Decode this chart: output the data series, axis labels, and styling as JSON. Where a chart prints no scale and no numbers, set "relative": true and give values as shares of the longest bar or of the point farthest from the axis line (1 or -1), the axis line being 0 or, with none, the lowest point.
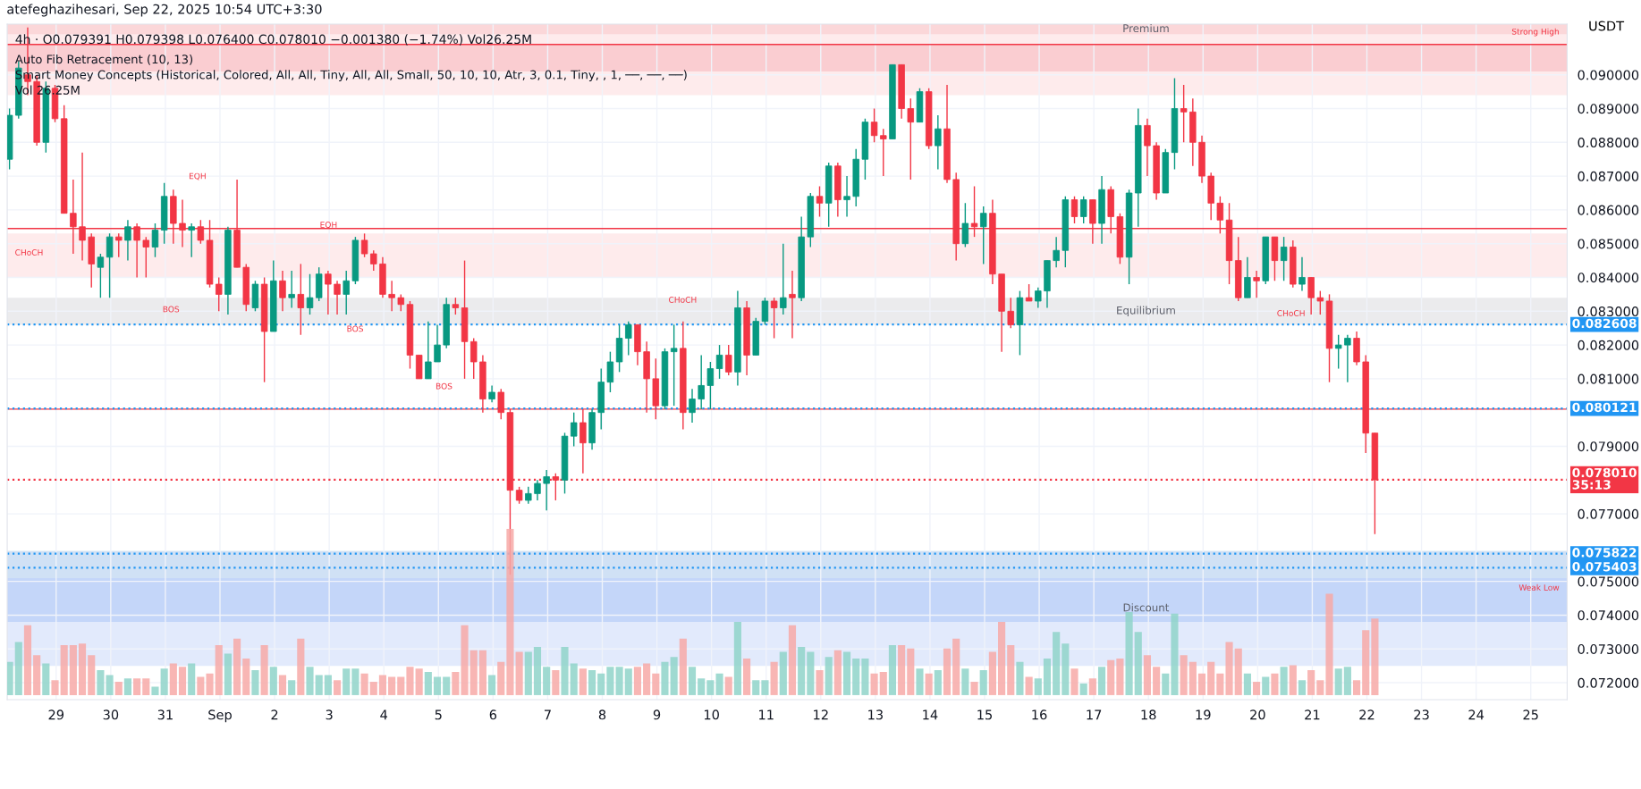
{
  "chart_data": [
    {
      "type": "candlestick",
      "title": "4h · O0.079391 H0.079398 L0.076400 C0.078010 −0.001380 (−1.74%) Vol26.25M",
      "subtitle": "Auto Fib Retracement (10, 13)\nSmart Money Concepts (Historical, Colored, All, All, Tiny, All, All, Small, 50, 10, 10, Atr, 3, 0.1, Tiny, , 1, ──, ──, ──)\nVol 26.25M",
      "ylabel": "USDT",
      "x": [
        "2025-08-28T03:30",
        "2025-08-28T07:30",
        "2025-08-28T11:30",
        "2025-08-28T15:30",
        "2025-08-28T19:30",
        "2025-08-28T23:30",
        "2025-08-29T03:30",
        "2025-08-29T07:30",
        "2025-08-29T11:30",
        "2025-08-29T15:30",
        "2025-08-29T19:30",
        "2025-08-29T23:30",
        "2025-08-30T03:30",
        "2025-08-30T07:30",
        "2025-08-30T11:30",
        "2025-08-30T15:30",
        "2025-08-30T19:30",
        "2025-08-30T23:30",
        "2025-08-31T03:30",
        "2025-08-31T07:30",
        "2025-08-31T11:30",
        "2025-08-31T15:30",
        "2025-08-31T19:30",
        "2025-08-31T23:30",
        "2025-09-01T03:30",
        "2025-09-01T07:30",
        "2025-09-01T11:30",
        "2025-09-01T15:30",
        "2025-09-01T19:30",
        "2025-09-01T23:30",
        "2025-09-02T03:30",
        "2025-09-02T07:30",
        "2025-09-02T11:30",
        "2025-09-02T15:30",
        "2025-09-02T19:30",
        "2025-09-02T23:30",
        "2025-09-03T03:30",
        "2025-09-03T07:30",
        "2025-09-03T11:30",
        "2025-09-03T15:30",
        "2025-09-03T19:30",
        "2025-09-03T23:30",
        "2025-09-04T03:30",
        "2025-09-04T07:30",
        "2025-09-04T11:30",
        "2025-09-04T15:30",
        "2025-09-04T19:30",
        "2025-09-04T23:30",
        "2025-09-05T03:30",
        "2025-09-05T07:30",
        "2025-09-05T11:30",
        "2025-09-05T15:30",
        "2025-09-05T19:30",
        "2025-09-05T23:30",
        "2025-09-06T03:30",
        "2025-09-06T07:30",
        "2025-09-06T11:30",
        "2025-09-06T15:30",
        "2025-09-06T19:30",
        "2025-09-06T23:30",
        "2025-09-07T03:30",
        "2025-09-07T07:30",
        "2025-09-07T11:30",
        "2025-09-07T15:30",
        "2025-09-07T19:30",
        "2025-09-07T23:30",
        "2025-09-08T03:30",
        "2025-09-08T07:30",
        "2025-09-08T11:30",
        "2025-09-08T15:30",
        "2025-09-08T19:30",
        "2025-09-08T23:30",
        "2025-09-09T03:30",
        "2025-09-09T07:30",
        "2025-09-09T11:30",
        "2025-09-09T15:30",
        "2025-09-09T19:30",
        "2025-09-09T23:30",
        "2025-09-10T03:30",
        "2025-09-10T07:30",
        "2025-09-10T11:30",
        "2025-09-10T15:30",
        "2025-09-10T19:30",
        "2025-09-10T23:30",
        "2025-09-11T03:30",
        "2025-09-11T07:30",
        "2025-09-11T11:30",
        "2025-09-11T15:30",
        "2025-09-11T19:30",
        "2025-09-11T23:30",
        "2025-09-12T03:30",
        "2025-09-12T07:30",
        "2025-09-12T11:30",
        "2025-09-12T15:30",
        "2025-09-12T19:30",
        "2025-09-12T23:30",
        "2025-09-13T03:30",
        "2025-09-13T07:30",
        "2025-09-13T11:30",
        "2025-09-13T15:30",
        "2025-09-13T19:30",
        "2025-09-13T23:30",
        "2025-09-14T03:30",
        "2025-09-14T07:30",
        "2025-09-14T11:30",
        "2025-09-14T15:30",
        "2025-09-14T19:30",
        "2025-09-14T23:30",
        "2025-09-15T03:30",
        "2025-09-15T07:30",
        "2025-09-15T11:30",
        "2025-09-15T15:30",
        "2025-09-15T19:30",
        "2025-09-15T23:30",
        "2025-09-16T03:30",
        "2025-09-16T07:30",
        "2025-09-16T11:30",
        "2025-09-16T15:30",
        "2025-09-16T19:30",
        "2025-09-16T23:30",
        "2025-09-17T03:30",
        "2025-09-17T07:30",
        "2025-09-17T11:30",
        "2025-09-17T15:30",
        "2025-09-17T19:30",
        "2025-09-17T23:30",
        "2025-09-18T03:30",
        "2025-09-18T07:30",
        "2025-09-18T11:30",
        "2025-09-18T15:30",
        "2025-09-18T19:30",
        "2025-09-18T23:30",
        "2025-09-19T03:30",
        "2025-09-19T07:30",
        "2025-09-19T11:30",
        "2025-09-19T15:30",
        "2025-09-19T19:30",
        "2025-09-19T23:30",
        "2025-09-20T03:30",
        "2025-09-20T07:30",
        "2025-09-20T11:30",
        "2025-09-20T15:30",
        "2025-09-20T19:30",
        "2025-09-20T23:30",
        "2025-09-21T03:30",
        "2025-09-21T07:30",
        "2025-09-21T11:30",
        "2025-09-21T15:30",
        "2025-09-21T19:30",
        "2025-09-21T23:30",
        "2025-09-22T03:30"
      ],
      "ohlc": [
        [
          0.0875,
          0.089,
          0.0872,
          0.0888
        ],
        [
          0.0888,
          0.0904,
          0.0887,
          0.0902
        ],
        [
          0.09,
          0.0914,
          0.0894,
          0.0898
        ],
        [
          0.0898,
          0.09,
          0.0879,
          0.088
        ],
        [
          0.088,
          0.0898,
          0.0877,
          0.0896
        ],
        [
          0.0896,
          0.0897,
          0.0886,
          0.0887
        ],
        [
          0.0887,
          0.0891,
          0.0859,
          0.0859
        ],
        [
          0.0859,
          0.0869,
          0.0847,
          0.0855
        ],
        [
          0.0855,
          0.0877,
          0.0845,
          0.0851
        ],
        [
          0.0852,
          0.0853,
          0.0837,
          0.0844
        ],
        [
          0.0843,
          0.0847,
          0.0834,
          0.0846
        ],
        [
          0.0846,
          0.0853,
          0.0834,
          0.0852
        ],
        [
          0.0852,
          0.0853,
          0.0846,
          0.0851
        ],
        [
          0.0851,
          0.0857,
          0.0845,
          0.0855
        ],
        [
          0.0855,
          0.0856,
          0.084,
          0.0851
        ],
        [
          0.0851,
          0.0852,
          0.084,
          0.0849
        ],
        [
          0.0849,
          0.0856,
          0.0846,
          0.0854
        ],
        [
          0.0854,
          0.0868,
          0.085,
          0.0864
        ],
        [
          0.0864,
          0.0866,
          0.085,
          0.0856
        ],
        [
          0.0856,
          0.0863,
          0.0849,
          0.0854
        ],
        [
          0.0854,
          0.0856,
          0.0846,
          0.0855
        ],
        [
          0.0855,
          0.0857,
          0.085,
          0.0851
        ],
        [
          0.0851,
          0.0857,
          0.0837,
          0.0838
        ],
        [
          0.0838,
          0.084,
          0.083,
          0.0835
        ],
        [
          0.0835,
          0.0855,
          0.0829,
          0.0854
        ],
        [
          0.0854,
          0.0869,
          0.0843,
          0.0843
        ],
        [
          0.0843,
          0.0844,
          0.083,
          0.0832
        ],
        [
          0.0831,
          0.0839,
          0.083,
          0.0838
        ],
        [
          0.0838,
          0.084,
          0.0809,
          0.0824
        ],
        [
          0.0824,
          0.0845,
          0.0824,
          0.0839
        ],
        [
          0.0839,
          0.0842,
          0.083,
          0.0834
        ],
        [
          0.0834,
          0.0842,
          0.0831,
          0.0835
        ],
        [
          0.0835,
          0.0844,
          0.0823,
          0.0831
        ],
        [
          0.0831,
          0.0841,
          0.0829,
          0.0834
        ],
        [
          0.0834,
          0.0843,
          0.0833,
          0.0841
        ],
        [
          0.0841,
          0.0842,
          0.0829,
          0.0838
        ],
        [
          0.0838,
          0.0839,
          0.0829,
          0.0835
        ],
        [
          0.0835,
          0.0842,
          0.0829,
          0.0839
        ],
        [
          0.0839,
          0.0852,
          0.0838,
          0.0851
        ],
        [
          0.0851,
          0.0853,
          0.0846,
          0.0847
        ],
        [
          0.0847,
          0.0848,
          0.0842,
          0.0844
        ],
        [
          0.0844,
          0.0846,
          0.0834,
          0.0835
        ],
        [
          0.0835,
          0.0839,
          0.083,
          0.0834
        ],
        [
          0.0834,
          0.0835,
          0.083,
          0.0832
        ],
        [
          0.0832,
          0.0833,
          0.0813,
          0.0817
        ],
        [
          0.0817,
          0.0817,
          0.081,
          0.081
        ],
        [
          0.081,
          0.0827,
          0.081,
          0.0815
        ],
        [
          0.0815,
          0.0826,
          0.0815,
          0.082
        ],
        [
          0.082,
          0.0834,
          0.0819,
          0.0832
        ],
        [
          0.0832,
          0.0834,
          0.0829,
          0.0831
        ],
        [
          0.0831,
          0.0845,
          0.081,
          0.0821
        ],
        [
          0.0821,
          0.0822,
          0.081,
          0.0815
        ],
        [
          0.0815,
          0.0817,
          0.08,
          0.0804
        ],
        [
          0.0804,
          0.0808,
          0.0803,
          0.0806
        ],
        [
          0.0806,
          0.0807,
          0.0798,
          0.08
        ],
        [
          0.08,
          0.0801,
          0.0752,
          0.0777
        ],
        [
          0.0777,
          0.0778,
          0.0773,
          0.0774
        ],
        [
          0.0774,
          0.0778,
          0.0773,
          0.0776
        ],
        [
          0.0776,
          0.078,
          0.0774,
          0.0779
        ],
        [
          0.0779,
          0.0783,
          0.0771,
          0.0781
        ],
        [
          0.0781,
          0.0782,
          0.0774,
          0.078
        ],
        [
          0.078,
          0.0794,
          0.0776,
          0.0793
        ],
        [
          0.0793,
          0.08,
          0.079,
          0.0797
        ],
        [
          0.0797,
          0.0801,
          0.0782,
          0.0791
        ],
        [
          0.0791,
          0.0801,
          0.0789,
          0.08
        ],
        [
          0.08,
          0.0813,
          0.0795,
          0.0809
        ],
        [
          0.0809,
          0.0818,
          0.0806,
          0.0815
        ],
        [
          0.0815,
          0.0826,
          0.0812,
          0.0822
        ],
        [
          0.0822,
          0.0827,
          0.0817,
          0.0826
        ],
        [
          0.0826,
          0.0826,
          0.0814,
          0.0818
        ],
        [
          0.0818,
          0.0821,
          0.08,
          0.081
        ],
        [
          0.081,
          0.0816,
          0.0798,
          0.0802
        ],
        [
          0.0802,
          0.0819,
          0.0801,
          0.0818
        ],
        [
          0.0818,
          0.0826,
          0.0802,
          0.0819
        ],
        [
          0.0819,
          0.0827,
          0.0795,
          0.08
        ],
        [
          0.08,
          0.0807,
          0.0797,
          0.0804
        ],
        [
          0.0804,
          0.0817,
          0.0801,
          0.0808
        ],
        [
          0.0808,
          0.0815,
          0.0801,
          0.0813
        ],
        [
          0.0813,
          0.082,
          0.081,
          0.0817
        ],
        [
          0.0817,
          0.082,
          0.0811,
          0.0812
        ],
        [
          0.0812,
          0.0836,
          0.0808,
          0.0831
        ],
        [
          0.0831,
          0.0833,
          0.0811,
          0.0817
        ],
        [
          0.0817,
          0.0828,
          0.0817,
          0.0827
        ],
        [
          0.0827,
          0.0834,
          0.0826,
          0.0833
        ],
        [
          0.0833,
          0.0834,
          0.0822,
          0.0831
        ],
        [
          0.0831,
          0.085,
          0.0829,
          0.0834
        ],
        [
          0.0835,
          0.0842,
          0.0822,
          0.0834
        ],
        [
          0.0834,
          0.0858,
          0.0833,
          0.0852
        ],
        [
          0.0852,
          0.0865,
          0.0849,
          0.0864
        ],
        [
          0.0864,
          0.0867,
          0.0858,
          0.0862
        ],
        [
          0.0862,
          0.0874,
          0.0855,
          0.0873
        ],
        [
          0.0873,
          0.0874,
          0.0858,
          0.0863
        ],
        [
          0.0863,
          0.087,
          0.0858,
          0.0864
        ],
        [
          0.0864,
          0.0878,
          0.0861,
          0.0875
        ],
        [
          0.0875,
          0.0887,
          0.0869,
          0.0886
        ],
        [
          0.0886,
          0.089,
          0.088,
          0.0882
        ],
        [
          0.0882,
          0.0884,
          0.087,
          0.0881
        ],
        [
          0.0881,
          0.0903,
          0.0881,
          0.0903
        ],
        [
          0.0903,
          0.0903,
          0.0887,
          0.089
        ],
        [
          0.089,
          0.0893,
          0.0869,
          0.0886
        ],
        [
          0.0886,
          0.0896,
          0.0886,
          0.0895
        ],
        [
          0.0895,
          0.0896,
          0.0878,
          0.0879
        ],
        [
          0.0879,
          0.0888,
          0.0872,
          0.0884
        ],
        [
          0.0884,
          0.0897,
          0.0868,
          0.0869
        ],
        [
          0.0869,
          0.0871,
          0.0845,
          0.085
        ],
        [
          0.085,
          0.0862,
          0.0849,
          0.0856
        ],
        [
          0.0856,
          0.0867,
          0.0852,
          0.0855
        ],
        [
          0.0855,
          0.0861,
          0.0844,
          0.0859
        ],
        [
          0.0859,
          0.0863,
          0.0838,
          0.0841
        ],
        [
          0.0841,
          0.0841,
          0.0818,
          0.083
        ],
        [
          0.083,
          0.0834,
          0.0825,
          0.0826
        ],
        [
          0.0826,
          0.0836,
          0.0817,
          0.0834
        ],
        [
          0.0834,
          0.0838,
          0.0833,
          0.0833
        ],
        [
          0.0833,
          0.0837,
          0.0831,
          0.0836
        ],
        [
          0.0836,
          0.0845,
          0.0831,
          0.0845
        ],
        [
          0.0845,
          0.0852,
          0.0843,
          0.0848
        ],
        [
          0.0848,
          0.0864,
          0.0843,
          0.0863
        ],
        [
          0.0863,
          0.0864,
          0.0856,
          0.0858
        ],
        [
          0.0858,
          0.0864,
          0.0856,
          0.0863
        ],
        [
          0.0863,
          0.0863,
          0.085,
          0.0856
        ],
        [
          0.0856,
          0.087,
          0.085,
          0.0866
        ],
        [
          0.0866,
          0.0867,
          0.0853,
          0.0858
        ],
        [
          0.0858,
          0.0859,
          0.0844,
          0.0846
        ],
        [
          0.0846,
          0.0866,
          0.0838,
          0.0865
        ],
        [
          0.0865,
          0.089,
          0.0855,
          0.0885
        ],
        [
          0.0885,
          0.0887,
          0.087,
          0.0879
        ],
        [
          0.0879,
          0.088,
          0.0863,
          0.0865
        ],
        [
          0.0865,
          0.0878,
          0.0865,
          0.0877
        ],
        [
          0.0877,
          0.0899,
          0.0872,
          0.089
        ],
        [
          0.089,
          0.0897,
          0.088,
          0.0889
        ],
        [
          0.0889,
          0.0893,
          0.0873,
          0.088
        ],
        [
          0.088,
          0.0882,
          0.0868,
          0.087
        ],
        [
          0.087,
          0.0871,
          0.0857,
          0.0862
        ],
        [
          0.0862,
          0.0864,
          0.0853,
          0.0857
        ],
        [
          0.0857,
          0.0862,
          0.0838,
          0.0845
        ],
        [
          0.0845,
          0.0852,
          0.0833,
          0.0834
        ],
        [
          0.0834,
          0.0846,
          0.0834,
          0.084
        ],
        [
          0.084,
          0.0842,
          0.0834,
          0.0839
        ],
        [
          0.0839,
          0.0852,
          0.0838,
          0.0852
        ],
        [
          0.0852,
          0.0852,
          0.0839,
          0.0845
        ],
        [
          0.0845,
          0.0852,
          0.0839,
          0.0849
        ],
        [
          0.0849,
          0.0851,
          0.0837,
          0.0838
        ],
        [
          0.0838,
          0.0846,
          0.0836,
          0.084
        ],
        [
          0.084,
          0.084,
          0.0829,
          0.0834
        ],
        [
          0.0834,
          0.0836,
          0.0829,
          0.0833
        ],
        [
          0.0833,
          0.0835,
          0.0809,
          0.0819
        ],
        [
          0.0819,
          0.0823,
          0.0813,
          0.082
        ],
        [
          0.082,
          0.0823,
          0.0809,
          0.0822
        ],
        [
          0.0822,
          0.0824,
          0.0814,
          0.0815
        ],
        [
          0.0815,
          0.0817,
          0.0788,
          0.079391
        ],
        [
          0.079391,
          0.079398,
          0.0764,
          0.07801
        ]
      ],
      "xlim": [
        "2025-08-28T02:30",
        "2025-09-25T16:00"
      ],
      "xticks": [
        {
          "value": "2025-08-29",
          "label": "29"
        },
        {
          "value": "2025-08-30",
          "label": "30"
        },
        {
          "value": "2025-08-31",
          "label": "31"
        },
        {
          "value": "2025-09-01",
          "label": "Sep"
        },
        {
          "value": "2025-09-02",
          "label": "2"
        },
        {
          "value": "2025-09-03",
          "label": "3"
        },
        {
          "value": "2025-09-04",
          "label": "4"
        },
        {
          "value": "2025-09-05",
          "label": "5"
        },
        {
          "value": "2025-09-06",
          "label": "6"
        },
        {
          "value": "2025-09-07",
          "label": "7"
        },
        {
          "value": "2025-09-08",
          "label": "8"
        },
        {
          "value": "2025-09-09",
          "label": "9"
        },
        {
          "value": "2025-09-10",
          "label": "10"
        },
        {
          "value": "2025-09-11",
          "label": "11"
        },
        {
          "value": "2025-09-12",
          "label": "12"
        },
        {
          "value": "2025-09-13",
          "label": "13"
        },
        {
          "value": "2025-09-14",
          "label": "14"
        },
        {
          "value": "2025-09-15",
          "label": "15"
        },
        {
          "value": "2025-09-16",
          "label": "16"
        },
        {
          "value": "2025-09-17",
          "label": "17"
        },
        {
          "value": "2025-09-18",
          "label": "18"
        },
        {
          "value": "2025-09-19",
          "label": "19"
        },
        {
          "value": "2025-09-20",
          "label": "20"
        },
        {
          "value": "2025-09-21",
          "label": "21"
        },
        {
          "value": "2025-09-22",
          "label": "22"
        },
        {
          "value": "2025-09-23",
          "label": "23"
        },
        {
          "value": "2025-09-24",
          "label": "24"
        },
        {
          "value": "2025-09-25",
          "label": "25"
        }
      ],
      "ylim": [
        0.0715,
        0.0915
      ],
      "yticks": [
        {
          "value": 0.072,
          "label": "0.072000"
        },
        {
          "value": 0.073,
          "label": "0.073000"
        },
        {
          "value": 0.074,
          "label": "0.074000"
        },
        {
          "value": 0.075,
          "label": "0.075000"
        },
        {
          "value": 0.077,
          "label": "0.077000"
        },
        {
          "value": 0.079,
          "label": "0.079000"
        },
        {
          "value": 0.081,
          "label": "0.081000"
        },
        {
          "value": 0.082,
          "label": "0.082000"
        },
        {
          "value": 0.083,
          "label": "0.083000"
        },
        {
          "value": 0.084,
          "label": "0.084000"
        },
        {
          "value": 0.085,
          "label": "0.085000"
        },
        {
          "value": 0.086,
          "label": "0.086000"
        },
        {
          "value": 0.087,
          "label": "0.087000"
        },
        {
          "value": 0.088,
          "label": "0.088000"
        },
        {
          "value": 0.089,
          "label": "0.089000"
        },
        {
          "value": 0.09,
          "label": "0.090000"
        }
      ],
      "grid": true,
      "bands": [
        {
          "axis": "y",
          "from": 0.0894,
          "to": 0.0915,
          "color": "#fde3e4"
        },
        {
          "axis": "y",
          "from": 0.0912,
          "to": 0.0915,
          "label": "Premium",
          "color": "#f9cfd1"
        },
        {
          "axis": "y",
          "from": 0.0901,
          "to": 0.0909,
          "color": "#f8c0c6"
        },
        {
          "axis": "y",
          "from": 0.084,
          "to": 0.0853,
          "color": "#fde3e4"
        },
        {
          "axis": "y",
          "from": 0.0826,
          "to": 0.0834,
          "label": "Equilibrium",
          "color": "#e3e3e5"
        },
        {
          "axis": "y",
          "from": 0.0751,
          "to": 0.0759,
          "color": "#a9d4dc"
        },
        {
          "axis": "y",
          "from": 0.0725,
          "to": 0.0759,
          "label": "Discount",
          "color": "#d5e1fb"
        },
        {
          "axis": "y",
          "from": 0.0738,
          "to": 0.0751,
          "color": "#b8cdf8"
        }
      ],
      "ref_lines": [
        {
          "axis": "y",
          "value": 0.0909,
          "color": "#f23645",
          "line_style": "solid"
        },
        {
          "axis": "y",
          "value": 0.08545,
          "color": "#f23645",
          "line_style": "solid"
        },
        {
          "axis": "y",
          "value": 0.0801,
          "color": "#f23645",
          "line_style": "solid"
        },
        {
          "axis": "y",
          "value": 0.082608,
          "label": "0.082608",
          "color": "#2196f3",
          "line_style": "dotted"
        },
        {
          "axis": "y",
          "value": 0.080121,
          "label": "0.080121",
          "color": "#2196f3",
          "line_style": "dotted"
        },
        {
          "axis": "y",
          "value": 0.07801,
          "label": "0.078010\n35:13",
          "color": "#f23645",
          "line_style": "dotted"
        },
        {
          "axis": "y",
          "value": 0.075822,
          "label": "0.075822",
          "color": "#2196f3",
          "line_style": "dotted"
        },
        {
          "axis": "y",
          "value": 0.075403,
          "label": "0.075403",
          "color": "#2196f3",
          "line_style": "dotted"
        }
      ],
      "annotations": [
        "atefeghazihesari, Sep 22, 2025 10:54 UTC+3:30",
        "CHoCH",
        "EQH",
        "BOS",
        "EQH",
        "BOS",
        "BOS",
        "CHoCH",
        "CHoCH",
        "Strong High",
        "Weak Low"
      ]
    },
    {
      "type": "bar",
      "relative": true,
      "tick_labels": false,
      "x": [
        "2025-08-28T03:30",
        "2025-08-28T07:30",
        "2025-08-28T11:30",
        "2025-08-28T15:30",
        "2025-08-28T19:30",
        "2025-08-28T23:30",
        "2025-08-29T03:30",
        "2025-08-29T07:30",
        "2025-08-29T11:30",
        "2025-08-29T15:30",
        "2025-08-29T19:30",
        "2025-08-29T23:30",
        "2025-08-30T03:30",
        "2025-08-30T07:30",
        "2025-08-30T11:30",
        "2025-08-30T15:30",
        "2025-08-30T19:30",
        "2025-08-30T23:30",
        "2025-08-31T03:30",
        "2025-08-31T07:30",
        "2025-08-31T11:30",
        "2025-08-31T15:30",
        "2025-08-31T19:30",
        "2025-08-31T23:30",
        "2025-09-01T03:30",
        "2025-09-01T07:30",
        "2025-09-01T11:30",
        "2025-09-01T15:30",
        "2025-09-01T19:30",
        "2025-09-01T23:30",
        "2025-09-02T03:30",
        "2025-09-02T07:30",
        "2025-09-02T11:30",
        "2025-09-02T15:30",
        "2025-09-02T19:30",
        "2025-09-02T23:30",
        "2025-09-03T03:30",
        "2025-09-03T07:30",
        "2025-09-03T11:30",
        "2025-09-03T15:30",
        "2025-09-03T19:30",
        "2025-09-03T23:30",
        "2025-09-04T03:30",
        "2025-09-04T07:30",
        "2025-09-04T11:30",
        "2025-09-04T15:30",
        "2025-09-04T19:30",
        "2025-09-04T23:30",
        "2025-09-05T03:30",
        "2025-09-05T07:30",
        "2025-09-05T11:30",
        "2025-09-05T15:30",
        "2025-09-05T19:30",
        "2025-09-05T23:30",
        "2025-09-06T03:30",
        "2025-09-06T07:30",
        "2025-09-06T11:30",
        "2025-09-06T15:30",
        "2025-09-06T19:30",
        "2025-09-06T23:30",
        "2025-09-07T03:30",
        "2025-09-07T07:30",
        "2025-09-07T11:30",
        "2025-09-07T15:30",
        "2025-09-07T19:30",
        "2025-09-07T23:30",
        "2025-09-08T03:30",
        "2025-09-08T07:30",
        "2025-09-08T11:30",
        "2025-09-08T15:30",
        "2025-09-08T19:30",
        "2025-09-08T23:30",
        "2025-09-09T03:30",
        "2025-09-09T07:30",
        "2025-09-09T11:30",
        "2025-09-09T15:30",
        "2025-09-09T19:30",
        "2025-09-09T23:30",
        "2025-09-10T03:30",
        "2025-09-10T07:30",
        "2025-09-10T11:30",
        "2025-09-10T15:30",
        "2025-09-10T19:30",
        "2025-09-10T23:30",
        "2025-09-11T03:30",
        "2025-09-11T07:30",
        "2025-09-11T11:30",
        "2025-09-11T15:30",
        "2025-09-11T19:30",
        "2025-09-11T23:30",
        "2025-09-12T03:30",
        "2025-09-12T07:30",
        "2025-09-12T11:30",
        "2025-09-12T15:30",
        "2025-09-12T19:30",
        "2025-09-12T23:30",
        "2025-09-13T03:30",
        "2025-09-13T07:30",
        "2025-09-13T11:30",
        "2025-09-13T15:30",
        "2025-09-13T19:30",
        "2025-09-13T23:30",
        "2025-09-14T03:30",
        "2025-09-14T07:30",
        "2025-09-14T11:30",
        "2025-09-14T15:30",
        "2025-09-14T19:30",
        "2025-09-14T23:30",
        "2025-09-15T03:30",
        "2025-09-15T07:30",
        "2025-09-15T11:30",
        "2025-09-15T15:30",
        "2025-09-15T19:30",
        "2025-09-15T23:30",
        "2025-09-16T03:30",
        "2025-09-16T07:30",
        "2025-09-16T11:30",
        "2025-09-16T15:30",
        "2025-09-16T19:30",
        "2025-09-16T23:30",
        "2025-09-17T03:30",
        "2025-09-17T07:30",
        "2025-09-17T11:30",
        "2025-09-17T15:30",
        "2025-09-17T19:30",
        "2025-09-17T23:30",
        "2025-09-18T03:30",
        "2025-09-18T07:30",
        "2025-09-18T11:30",
        "2025-09-18T15:30",
        "2025-09-18T19:30",
        "2025-09-18T23:30",
        "2025-09-19T03:30",
        "2025-09-19T07:30",
        "2025-09-19T11:30",
        "2025-09-19T15:30",
        "2025-09-19T19:30",
        "2025-09-19T23:30",
        "2025-09-20T03:30",
        "2025-09-20T07:30",
        "2025-09-20T11:30",
        "2025-09-20T15:30",
        "2025-09-20T19:30",
        "2025-09-20T23:30",
        "2025-09-21T03:30",
        "2025-09-21T07:30",
        "2025-09-21T11:30",
        "2025-09-21T15:30",
        "2025-09-21T19:30",
        "2025-09-21T23:30",
        "2025-09-22T03:30"
      ],
      "xlim": [
        "2025-08-28T02:30",
        "2025-09-25T16:00"
      ],
      "values": [
        0.2,
        0.32,
        0.42,
        0.24,
        0.19,
        0.09,
        0.3,
        0.3,
        0.31,
        0.24,
        0.15,
        0.12,
        0.08,
        0.1,
        0.1,
        0.1,
        0.05,
        0.16,
        0.19,
        0.17,
        0.19,
        0.11,
        0.13,
        0.3,
        0.25,
        0.34,
        0.22,
        0.15,
        0.3,
        0.17,
        0.12,
        0.09,
        0.34,
        0.17,
        0.12,
        0.12,
        0.09,
        0.16,
        0.16,
        0.13,
        0.08,
        0.12,
        0.11,
        0.11,
        0.17,
        0.16,
        0.14,
        0.11,
        0.11,
        0.14,
        0.42,
        0.27,
        0.27,
        0.12,
        0.2,
        1,
        0.26,
        0.26,
        0.29,
        0.17,
        0.15,
        0.29,
        0.19,
        0.16,
        0.15,
        0.13,
        0.17,
        0.17,
        0.16,
        0.17,
        0.19,
        0.13,
        0.2,
        0.23,
        0.34,
        0.17,
        0.1,
        0.09,
        0.13,
        0.11,
        0.44,
        0.22,
        0.09,
        0.09,
        0.2,
        0.26,
        0.42,
        0.29,
        0.26,
        0.15,
        0.23,
        0.27,
        0.26,
        0.22,
        0.22,
        0.13,
        0.14,
        0.3,
        0.3,
        0.28,
        0.16,
        0.13,
        0.15,
        0.28,
        0.34,
        0.16,
        0.08,
        0.15,
        0.26,
        0.44,
        0.3,
        0.2,
        0.11,
        0.1,
        0.22,
        0.38,
        0.31,
        0.16,
        0.07,
        0.1,
        0.17,
        0.21,
        0.22,
        0.5,
        0.38,
        0.24,
        0.17,
        0.13,
        0.49,
        0.24,
        0.2,
        0.13,
        0.2,
        0.13,
        0.32,
        0.28,
        0.13,
        0.08,
        0.11,
        0.13,
        0.17,
        0.18,
        0.09,
        0.15,
        0.09,
        0.61,
        0.16,
        0.17,
        0.09,
        0.39,
        0.46
      ],
      "colors": [
        "#8fd3c9",
        "#8fd3c9",
        "#f7a9a7",
        "#f7a9a7",
        "#8fd3c9",
        "#f7a9a7",
        "#f7a9a7",
        "#f7a9a7",
        "#f7a9a7",
        "#f7a9a7",
        "#8fd3c9",
        "#8fd3c9",
        "#f7a9a7",
        "#8fd3c9",
        "#f7a9a7",
        "#f7a9a7",
        "#8fd3c9",
        "#8fd3c9",
        "#f7a9a7",
        "#f7a9a7",
        "#8fd3c9",
        "#f7a9a7",
        "#f7a9a7",
        "#f7a9a7",
        "#8fd3c9",
        "#f7a9a7",
        "#f7a9a7",
        "#8fd3c9",
        "#f7a9a7",
        "#8fd3c9",
        "#f7a9a7",
        "#8fd3c9",
        "#f7a9a7",
        "#8fd3c9",
        "#8fd3c9",
        "#8fd3c9",
        "#f7a9a7",
        "#8fd3c9",
        "#8fd3c9",
        "#f7a9a7",
        "#f7a9a7",
        "#f7a9a7",
        "#f7a9a7",
        "#f7a9a7",
        "#f7a9a7",
        "#f7a9a7",
        "#8fd3c9",
        "#8fd3c9",
        "#8fd3c9",
        "#f7a9a7",
        "#f7a9a7",
        "#f7a9a7",
        "#f7a9a7",
        "#8fd3c9",
        "#f7a9a7",
        "#f7a9a7",
        "#f7a9a7",
        "#8fd3c9",
        "#8fd3c9",
        "#8fd3c9",
        "#f7a9a7",
        "#8fd3c9",
        "#8fd3c9",
        "#f7a9a7",
        "#8fd3c9",
        "#8fd3c9",
        "#8fd3c9",
        "#8fd3c9",
        "#8fd3c9",
        "#f7a9a7",
        "#f7a9a7",
        "#f7a9a7",
        "#8fd3c9",
        "#8fd3c9",
        "#f7a9a7",
        "#8fd3c9",
        "#8fd3c9",
        "#8fd3c9",
        "#8fd3c9",
        "#f7a9a7",
        "#8fd3c9",
        "#f7a9a7",
        "#8fd3c9",
        "#8fd3c9",
        "#f7a9a7",
        "#8fd3c9",
        "#f7a9a7",
        "#8fd3c9",
        "#8fd3c9",
        "#f7a9a7",
        "#8fd3c9",
        "#f7a9a7",
        "#8fd3c9",
        "#8fd3c9",
        "#8fd3c9",
        "#f7a9a7",
        "#f7a9a7",
        "#8fd3c9",
        "#f7a9a7",
        "#f7a9a7",
        "#8fd3c9",
        "#f7a9a7",
        "#8fd3c9",
        "#f7a9a7",
        "#f7a9a7",
        "#8fd3c9",
        "#f7a9a7",
        "#8fd3c9",
        "#f7a9a7",
        "#f7a9a7",
        "#f7a9a7",
        "#8fd3c9",
        "#f7a9a7",
        "#8fd3c9",
        "#8fd3c9",
        "#8fd3c9",
        "#8fd3c9",
        "#f7a9a7",
        "#8fd3c9",
        "#f7a9a7",
        "#8fd3c9",
        "#f7a9a7",
        "#f7a9a7",
        "#8fd3c9",
        "#8fd3c9",
        "#f7a9a7",
        "#f7a9a7",
        "#8fd3c9",
        "#8fd3c9",
        "#f7a9a7",
        "#f7a9a7",
        "#f7a9a7",
        "#f7a9a7",
        "#f7a9a7",
        "#f7a9a7",
        "#f7a9a7",
        "#8fd3c9",
        "#f7a9a7",
        "#8fd3c9",
        "#f7a9a7",
        "#8fd3c9",
        "#f7a9a7",
        "#8fd3c9",
        "#f7a9a7",
        "#f7a9a7",
        "#f7a9a7",
        "#8fd3c9",
        "#8fd3c9",
        "#f7a9a7",
        "#f7a9a7",
        "#f7a9a7"
      ]
    }
  ]
}
